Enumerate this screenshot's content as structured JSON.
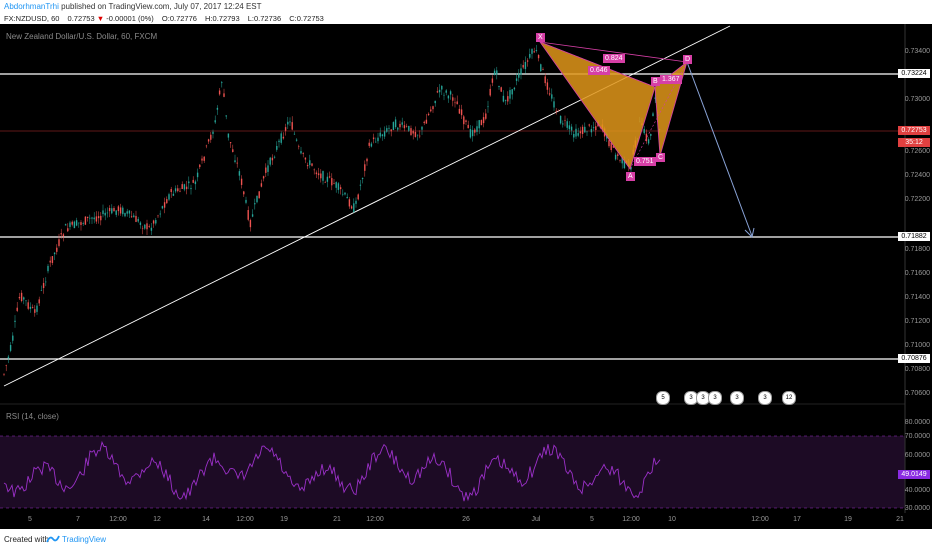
{
  "header": {
    "author": "AbdorhmanTrhi",
    "published": "published on TradingView.com, July 07, 2017 12:24 EST",
    "symbol": "FX:NZDUSD, 60",
    "last": "0.72753",
    "change": "-0.00001 (0%)",
    "open": "O:0.72776",
    "high": "H:0.72793",
    "low": "L:0.72736",
    "close": "C:0.72753"
  },
  "chart": {
    "title": "New Zealand Dollar/U.S. Dollar, 60, FXCM",
    "price_labels": [
      "0.73400",
      "0.73224",
      "0.73000",
      "0.72800",
      "0.72600",
      "0.72400",
      "0.72200",
      "0.71882",
      "0.71800",
      "0.71600",
      "0.71400",
      "0.71200",
      "0.71000",
      "0.70876",
      "0.70800",
      "0.70600"
    ],
    "tags": {
      "resist_top": "0.73224",
      "current": "0.72753",
      "small": "35:12",
      "support_mid": "0.71882",
      "support_low": "0.70876",
      "rsi_value": "49.0149"
    },
    "pattern": {
      "points": [
        "X",
        "A",
        "B",
        "C",
        "D"
      ],
      "ratios": [
        "0.824",
        "0.646",
        "1.367",
        "0.751"
      ]
    },
    "events": [
      "5",
      "3",
      "3",
      "3",
      "3",
      "3",
      "12"
    ]
  },
  "rsi": {
    "title": "RSI (14, close)",
    "levels": [
      "80.0000",
      "70.0000",
      "60.0000",
      "49.0149",
      "40.0000",
      "30.0000"
    ]
  },
  "x_axis": [
    "5",
    "7",
    "12:00",
    "12",
    "14",
    "12:00",
    "19",
    "21",
    "12:00",
    "26",
    "Jul",
    "5",
    "12:00",
    "10",
    "12:00",
    "17",
    "19",
    "21"
  ],
  "colors": {
    "background": "#000000",
    "pattern_fill": "#e0961a",
    "pattern_edge": "#d63fa6",
    "rsi_line": "#9b30c8",
    "trendline": "#ffffff",
    "projection": "#8aa4d8"
  },
  "footer": {
    "created": "Created with",
    "brand": "TradingView"
  }
}
